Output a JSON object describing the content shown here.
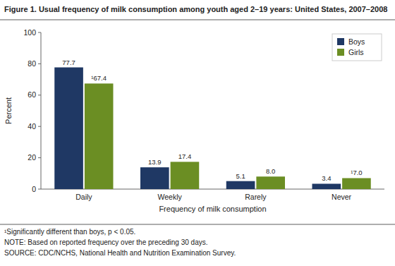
{
  "chart_data": {
    "type": "bar",
    "title": "Figure 1. Usual frequency of milk consumption among youth aged 2–19 years: United States, 2007–2008",
    "categories": [
      "Daily",
      "Weekly",
      "Rarely",
      "Never"
    ],
    "series": [
      {
        "name": "Boys",
        "color": "#1F3864",
        "values": [
          77.7,
          13.9,
          5.1,
          3.4
        ]
      },
      {
        "name": "Girls",
        "color": "#6B8E23",
        "values": [
          67.4,
          17.4,
          8.0,
          7.0
        ],
        "value_labels": [
          "¹67.4",
          "17.4",
          "8.0",
          "¹7.0"
        ]
      }
    ],
    "xlabel": "Frequency of milk consumption",
    "ylabel": "Percent",
    "ylim": [
      0,
      100
    ],
    "yticks": [
      0,
      20,
      40,
      60,
      80,
      100
    ],
    "grid": false,
    "legend": "upper right",
    "data_labels": true,
    "annotations": [
      "¹Significantly different than boys, p < 0.05.",
      "NOTE: Based on reported frequency over the preceding 30 days.",
      "SOURCE: CDC/NCHS, National Health and Nutrition Examination Survey."
    ]
  }
}
